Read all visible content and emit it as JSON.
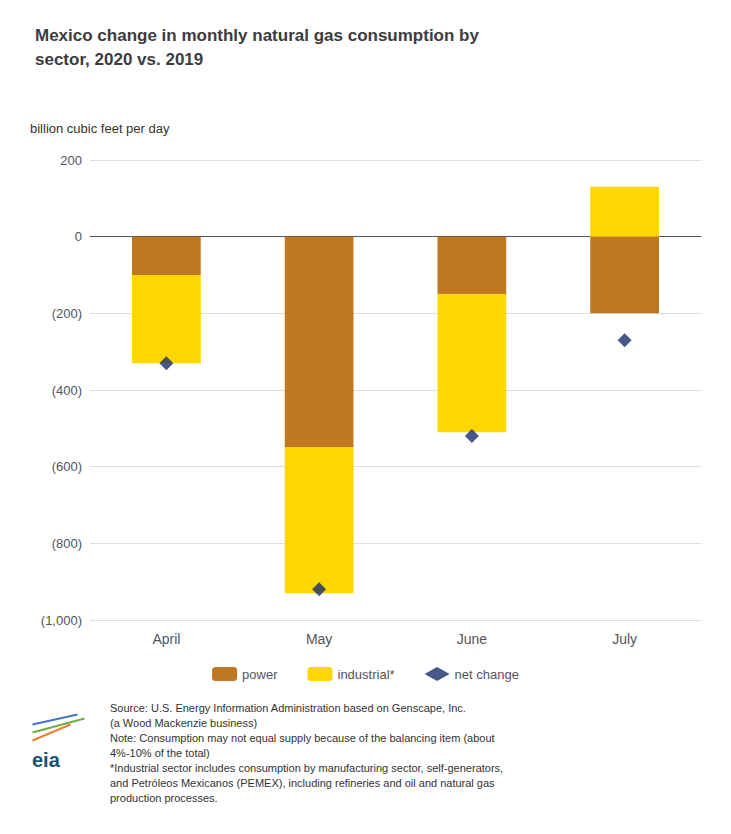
{
  "chart_data": {
    "type": "bar",
    "title": "Mexico change in monthly natural gas consumption by\nsector, 2020 vs. 2019",
    "ylabel": "billion cubic feet per day",
    "categories": [
      "April",
      "May",
      "June",
      "July"
    ],
    "series": [
      {
        "name": "power",
        "type": "bar",
        "color": "#C07820",
        "values": [
          -100,
          -550,
          -150,
          -200
        ]
      },
      {
        "name": "industrial*",
        "type": "bar",
        "color": "#FFD700",
        "values": [
          -230,
          -380,
          -360,
          130
        ]
      },
      {
        "name": "net change",
        "type": "scatter",
        "marker": "diamond",
        "color": "#1A2E6B",
        "values": [
          -330,
          -920,
          -520,
          -270
        ]
      }
    ],
    "stacked": true,
    "ylim": [
      -1000,
      200
    ],
    "yticks": [
      200,
      0,
      {
        "value": -200,
        "label": "(200)"
      },
      {
        "value": -400,
        "label": "(400)"
      },
      {
        "value": -600,
        "label": "(600)"
      },
      {
        "value": -800,
        "label": "(800)"
      },
      {
        "value": -1000,
        "label": "(1,000)"
      }
    ],
    "grid": true,
    "legend": "bottom",
    "source": "Source: U.S. Energy Information Administration based on Genscape, Inc.\n(a Wood Mackenzie business)\nNote: Consumption may not equal supply because of the balancing item (about\n4%-10% of the total)\n*Industrial sector includes consumption by manufacturing sector, self-generators,\nand Petróleos Mexicanos (PEMEX), including refineries and oil and natural gas\nproduction processes.",
    "logo": "eia"
  }
}
